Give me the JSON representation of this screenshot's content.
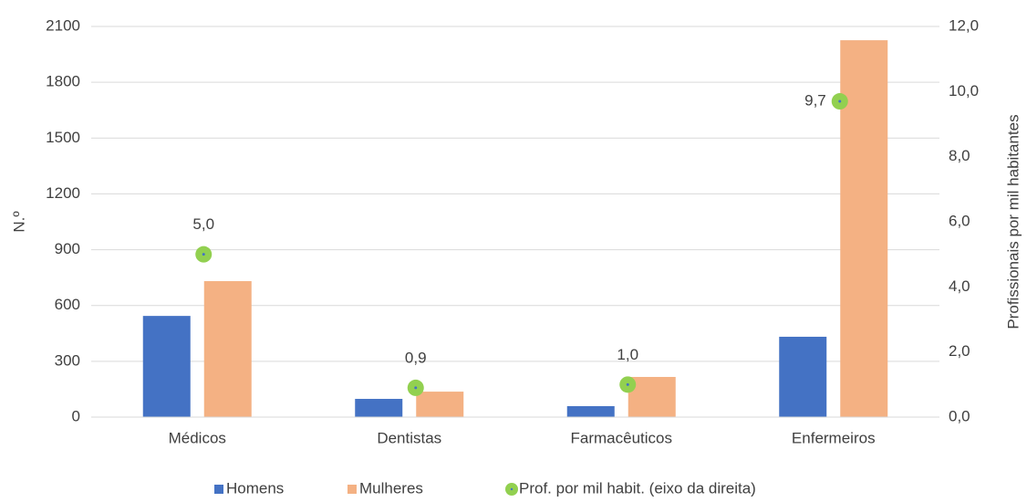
{
  "chart_data": {
    "type": "bar",
    "categories": [
      "Médicos",
      "Dentistas",
      "Farmacêuticos",
      "Enfermeiros"
    ],
    "series": [
      {
        "name": "Homens",
        "color": "#4472c4",
        "values": [
          544,
          98,
          59,
          432
        ]
      },
      {
        "name": "Mulheres",
        "color": "#f4b183",
        "values": [
          731,
          137,
          216,
          2026
        ]
      },
      {
        "name": "Prof. por mil habit. (eixo da direita)",
        "color": "#92d050",
        "axis": "y2",
        "type": "scatter",
        "values": [
          5.0,
          0.9,
          1.0,
          9.7
        ],
        "value_labels": [
          "5,0",
          "0,9",
          "1,0",
          "9,7"
        ]
      }
    ],
    "ylabel": "N.º",
    "y2label": "Profissionais por mil habitantes",
    "ylim": [
      0,
      2100
    ],
    "yticks": [
      0,
      300,
      600,
      900,
      1200,
      1500,
      1800,
      2100
    ],
    "y2lim": [
      0,
      12
    ],
    "y2ticks": [
      {
        "value": 0,
        "label": "0,0"
      },
      {
        "value": 2,
        "label": "2,0"
      },
      {
        "value": 4,
        "label": "4,0"
      },
      {
        "value": 6,
        "label": "6,0"
      },
      {
        "value": 8,
        "label": "8,0"
      },
      {
        "value": 10,
        "label": "10,0"
      },
      {
        "value": 12,
        "label": "12,0"
      }
    ],
    "grid": true,
    "legend": "bottom"
  }
}
